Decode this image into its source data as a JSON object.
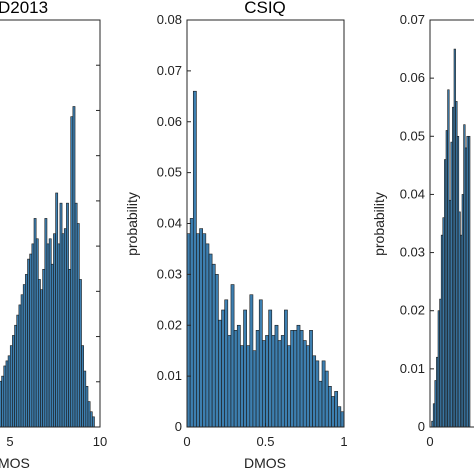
{
  "chart_data": [
    {
      "type": "bar",
      "title": "D2013",
      "xlabel": "MOS",
      "ylabel": "",
      "xlim": [
        0,
        10
      ],
      "ylim": [
        0,
        0.08
      ],
      "xticks": [
        "5",
        "10"
      ],
      "yticks": [],
      "bin_start": 0,
      "bin_width": 0.18,
      "values": [
        0.0005,
        0.001,
        0.002,
        0.003,
        0.004,
        0.005,
        0.006,
        0.007,
        0.008,
        0.009,
        0.01,
        0.012,
        0.013,
        0.014,
        0.016,
        0.018,
        0.02,
        0.022,
        0.024,
        0.026,
        0.028,
        0.03,
        0.033,
        0.034,
        0.036,
        0.041,
        0.037,
        0.029,
        0.027,
        0.031,
        0.041,
        0.036,
        0.037,
        0.032,
        0.038,
        0.046,
        0.036,
        0.044,
        0.038,
        0.039,
        0.044,
        0.031,
        0.061,
        0.063,
        0.044,
        0.04,
        0.029,
        0.016,
        0.011,
        0.008,
        0.005,
        0.003,
        0.002
      ]
    },
    {
      "type": "bar",
      "title": "CSIQ",
      "xlabel": "DMOS",
      "ylabel": "probability",
      "xlim": [
        0,
        1
      ],
      "ylim": [
        0,
        0.08
      ],
      "xticks": [
        "0",
        "0.5",
        "1"
      ],
      "yticks": [
        "0",
        "0.01",
        "0.02",
        "0.03",
        "0.04",
        "0.05",
        "0.06",
        "0.07",
        "0.08"
      ],
      "bin_start": 0,
      "bin_width": 0.02,
      "values": [
        0.038,
        0.041,
        0.066,
        0.038,
        0.039,
        0.038,
        0.036,
        0.034,
        0.032,
        0.03,
        0.021,
        0.023,
        0.025,
        0.018,
        0.028,
        0.019,
        0.02,
        0.016,
        0.023,
        0.016,
        0.026,
        0.015,
        0.019,
        0.025,
        0.017,
        0.018,
        0.023,
        0.018,
        0.02,
        0.017,
        0.018,
        0.023,
        0.016,
        0.019,
        0.019,
        0.02,
        0.019,
        0.017,
        0.016,
        0.019,
        0.014,
        0.013,
        0.009,
        0.013,
        0.011,
        0.008,
        0.006,
        0.007,
        0.004,
        0.003
      ]
    },
    {
      "type": "bar",
      "title": "",
      "xlabel": "",
      "ylabel": "probability",
      "xlim": [
        0,
        1
      ],
      "ylim": [
        0,
        0.07
      ],
      "xticks": [
        "0"
      ],
      "yticks": [
        "0",
        "0.01",
        "0.02",
        "0.03",
        "0.04",
        "0.05",
        "0.06",
        "0.07"
      ],
      "bin_start": 0.02,
      "bin_width": 0.02,
      "values": [
        0.001,
        0.004,
        0.008,
        0.012,
        0.02,
        0.022,
        0.033,
        0.036,
        0.046,
        0.051,
        0.058,
        0.039,
        0.049,
        0.055,
        0.065,
        0.056,
        0.05,
        0.037,
        0.033,
        0.04,
        0.052,
        0.048,
        0.05,
        0.05
      ]
    }
  ]
}
